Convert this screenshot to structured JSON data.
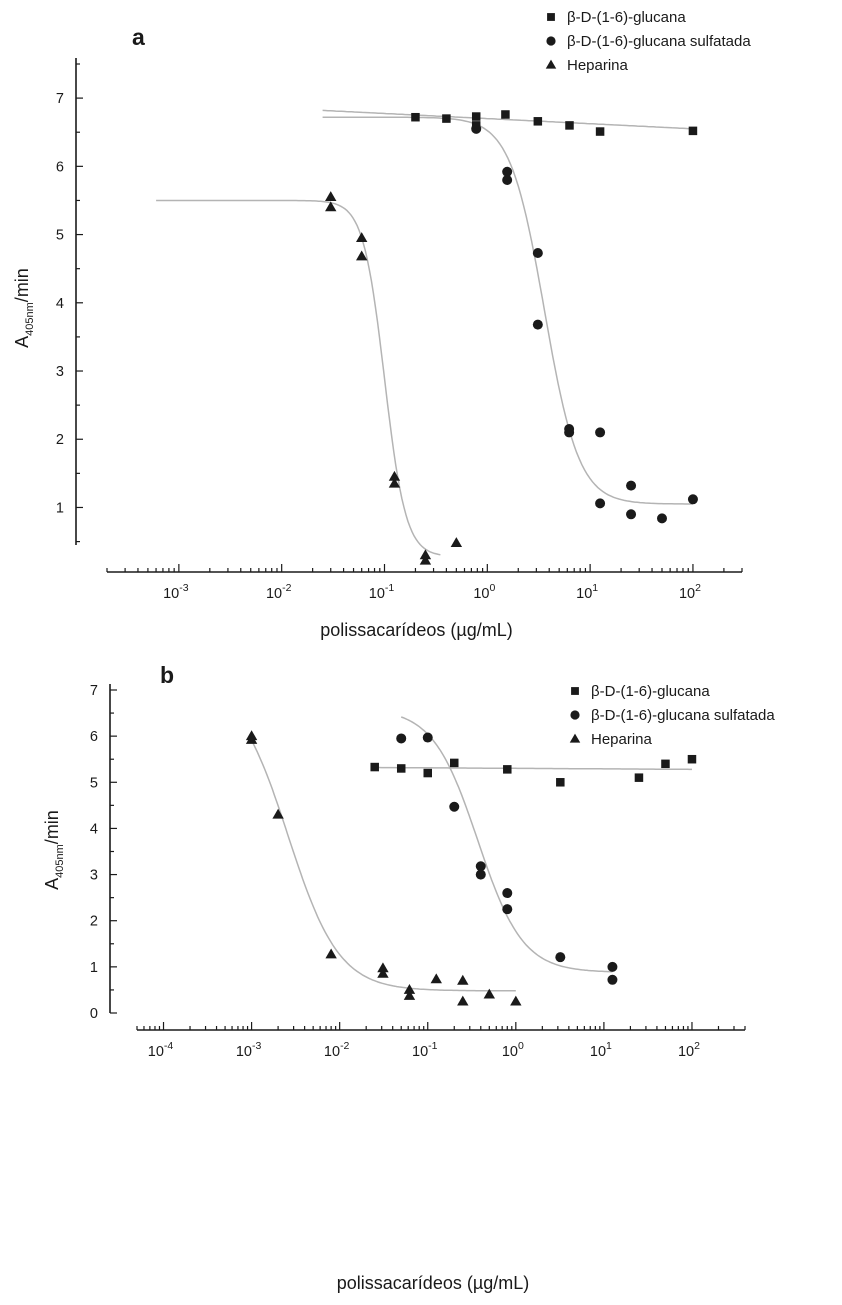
{
  "chart_data": [
    {
      "type": "scatter",
      "panel_label": "a",
      "xlabel": "polissacarídeos (µg/mL)",
      "ylabel_main": "A",
      "ylabel_sub": "405nm",
      "ylabel_tail": "/min",
      "x_scale": "log",
      "xlim": [
        0.0002,
        300
      ],
      "ylim": [
        0.45,
        7.5
      ],
      "x_ticks": [
        {
          "base": "10",
          "exp": "-3",
          "value": 0.001
        },
        {
          "base": "10",
          "exp": "-2",
          "value": 0.01
        },
        {
          "base": "10",
          "exp": "-1",
          "value": 0.1
        },
        {
          "base": "10",
          "exp": "0",
          "value": 1
        },
        {
          "base": "10",
          "exp": "1",
          "value": 10
        },
        {
          "base": "10",
          "exp": "2",
          "value": 100
        }
      ],
      "y_ticks": [
        "1",
        "2",
        "3",
        "4",
        "5",
        "6",
        "7"
      ],
      "legend_position": "top-right",
      "series": [
        {
          "name": "β-D-(1-6)-glucana",
          "marker": "square",
          "points": [
            [
              0.2,
              6.72
            ],
            [
              0.4,
              6.7
            ],
            [
              0.78,
              6.73
            ],
            [
              0.78,
              6.6
            ],
            [
              1.5,
              6.76
            ],
            [
              3.1,
              6.66
            ],
            [
              6.3,
              6.6
            ],
            [
              12.5,
              6.51
            ],
            [
              100,
              6.52
            ]
          ],
          "fit": {
            "kind": "flat",
            "x_range": [
              0.025,
              100
            ],
            "y_start": 6.82,
            "y_end": 6.55
          }
        },
        {
          "name": "β-D-(1-6)-glucana sulfatada",
          "marker": "circle",
          "points": [
            [
              0.78,
              6.55
            ],
            [
              1.56,
              5.92
            ],
            [
              1.56,
              5.8
            ],
            [
              3.1,
              4.73
            ],
            [
              3.1,
              3.68
            ],
            [
              6.25,
              2.15
            ],
            [
              6.25,
              2.1
            ],
            [
              12.5,
              2.1
            ],
            [
              12.5,
              1.06
            ],
            [
              25,
              1.32
            ],
            [
              25,
              0.9
            ],
            [
              50,
              0.84
            ],
            [
              100,
              1.12
            ]
          ],
          "fit": {
            "kind": "logistic",
            "x_range": [
              0.025,
              100
            ],
            "top": 6.72,
            "bottom": 1.05,
            "ec50": 3.6,
            "hill": 2.6
          }
        },
        {
          "name": "Heparina",
          "marker": "triangle",
          "points": [
            [
              0.03,
              5.55
            ],
            [
              0.03,
              5.4
            ],
            [
              0.06,
              4.95
            ],
            [
              0.06,
              4.68
            ],
            [
              0.125,
              1.45
            ],
            [
              0.125,
              1.35
            ],
            [
              0.25,
              0.3
            ],
            [
              0.25,
              0.22
            ],
            [
              0.5,
              0.48
            ]
          ],
          "fit": {
            "kind": "logistic",
            "x_range": [
              0.0006,
              0.35
            ],
            "top": 5.5,
            "bottom": 0.28,
            "ec50": 0.1,
            "hill": 4.2
          }
        }
      ]
    },
    {
      "type": "scatter",
      "panel_label": "b",
      "xlabel": "polissacarídeos (µg/mL)",
      "ylabel_main": "A",
      "ylabel_sub": "405nm",
      "ylabel_tail": "/min",
      "x_scale": "log",
      "xlim": [
        5e-05,
        400
      ],
      "ylim": [
        0,
        7
      ],
      "x_ticks": [
        {
          "base": "10",
          "exp": "-4",
          "value": 0.0001
        },
        {
          "base": "10",
          "exp": "-3",
          "value": 0.001
        },
        {
          "base": "10",
          "exp": "-2",
          "value": 0.01
        },
        {
          "base": "10",
          "exp": "-1",
          "value": 0.1
        },
        {
          "base": "10",
          "exp": "0",
          "value": 1
        },
        {
          "base": "10",
          "exp": "1",
          "value": 10
        },
        {
          "base": "10",
          "exp": "2",
          "value": 100
        }
      ],
      "y_ticks": [
        "0",
        "1",
        "2",
        "3",
        "4",
        "5",
        "6",
        "7"
      ],
      "legend_position": "top-right",
      "series": [
        {
          "name": "β-D-(1-6)-glucana",
          "marker": "square",
          "points": [
            [
              0.025,
              5.33
            ],
            [
              0.05,
              5.3
            ],
            [
              0.1,
              5.2
            ],
            [
              0.2,
              5.42
            ],
            [
              0.8,
              5.28
            ],
            [
              3.2,
              5.0
            ],
            [
              25,
              5.1
            ],
            [
              50,
              5.4
            ],
            [
              100,
              5.5
            ]
          ],
          "fit": {
            "kind": "flat",
            "x_range": [
              0.025,
              100
            ],
            "y_start": 5.32,
            "y_end": 5.28
          }
        },
        {
          "name": "β-D-(1-6)-glucana sulfatada",
          "marker": "circle",
          "points": [
            [
              0.05,
              5.95
            ],
            [
              0.1,
              5.97
            ],
            [
              0.2,
              4.47
            ],
            [
              0.4,
              3.18
            ],
            [
              0.4,
              3.0
            ],
            [
              0.8,
              2.6
            ],
            [
              0.8,
              2.25
            ],
            [
              3.2,
              1.21
            ],
            [
              12.5,
              1.0
            ],
            [
              12.5,
              0.72
            ]
          ],
          "fit": {
            "kind": "logistic",
            "x_range": [
              0.05,
              12.5
            ],
            "top": 6.6,
            "bottom": 0.88,
            "ec50": 0.37,
            "hill": 1.7
          }
        },
        {
          "name": "Heparina",
          "marker": "triangle",
          "points": [
            [
              0.001,
              6.0
            ],
            [
              0.001,
              5.92
            ],
            [
              0.002,
              4.3
            ],
            [
              0.008,
              1.27
            ],
            [
              0.031,
              0.97
            ],
            [
              0.031,
              0.85
            ],
            [
              0.062,
              0.5
            ],
            [
              0.062,
              0.37
            ],
            [
              0.125,
              0.73
            ],
            [
              0.25,
              0.7
            ],
            [
              0.25,
              0.25
            ],
            [
              0.5,
              0.4
            ],
            [
              1.0,
              0.25
            ]
          ],
          "fit": {
            "kind": "logistic",
            "x_range": [
              0.001,
              1.0
            ],
            "top": 7.2,
            "bottom": 0.48,
            "ec50": 0.0026,
            "hill": 1.5
          }
        }
      ]
    }
  ]
}
